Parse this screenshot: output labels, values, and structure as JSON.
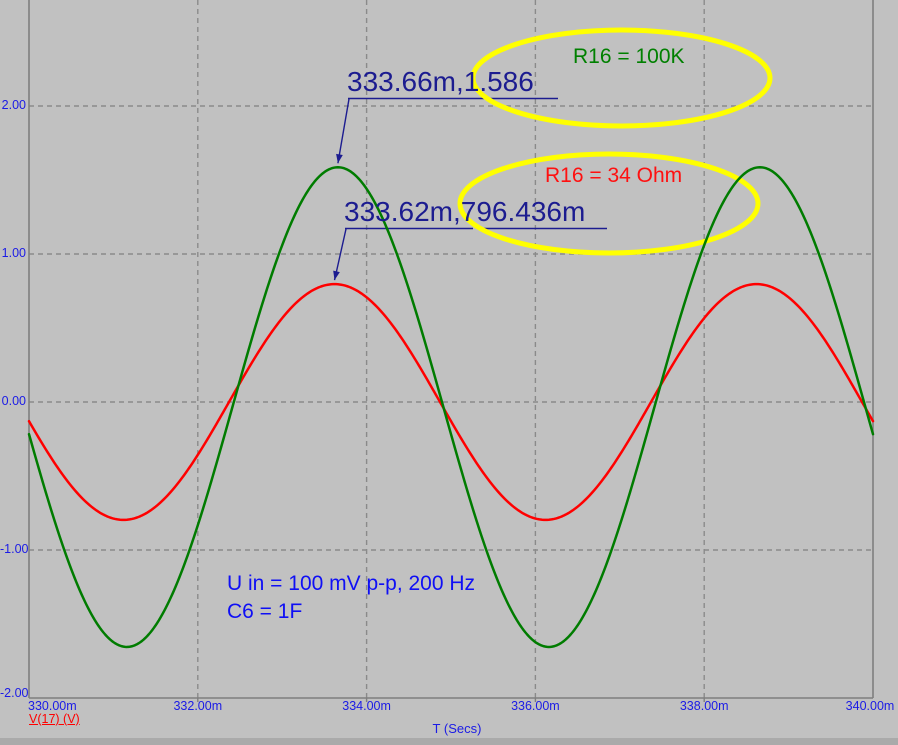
{
  "colors": {
    "background": "#c1c1c1",
    "plot_border": "#7f7f7f",
    "grid": "#8a8a8a",
    "tick_blue": "#1b1be6",
    "tag_navy": "#1c1c90",
    "green": "#007c00",
    "red": "#ff0000",
    "yellow": "#ffff00"
  },
  "axes": {
    "x_title": "T (Secs)",
    "trace_label": "V(17) (V)"
  },
  "annotations": {
    "tag1": "333.66m,1.586",
    "tag2": "333.62m,796.436m",
    "callout1": "R16 = 100K",
    "callout2": "R16 = 34 Ohm",
    "note_line1": "U in = 100 mV p-p, 200 Hz",
    "note_line2": "C6 = 1F"
  },
  "chart_data": {
    "type": "line",
    "xlabel": "T (Secs)",
    "trace_expression": "V(17) (V)",
    "x_range_ms": [
      330,
      340
    ],
    "ylim": [
      -2,
      2
    ],
    "grid": "dashed",
    "x_ticks": [
      {
        "label": "330.00m",
        "t_ms": 330
      },
      {
        "label": "332.00m",
        "t_ms": 332
      },
      {
        "label": "334.00m",
        "t_ms": 334
      },
      {
        "label": "336.00m",
        "t_ms": 336
      },
      {
        "label": "338.00m",
        "t_ms": 338
      },
      {
        "label": "340.00m",
        "t_ms": 340
      }
    ],
    "y_ticks": [
      {
        "label": "2.00",
        "v": 2
      },
      {
        "label": "1.00",
        "v": 1
      },
      {
        "label": "0.00",
        "v": 0
      },
      {
        "label": "-1.00",
        "v": -1
      },
      {
        "label": "-2.00",
        "v": -2
      }
    ],
    "series": [
      {
        "name": "V(17), R16 = 100K",
        "color_key": "green",
        "waveform": "sine",
        "frequency_hz": 200,
        "period_ms": 5,
        "peak_time_ms": 333.66,
        "peak_value": 1.586,
        "min_value": -1.655
      },
      {
        "name": "V(17), R16 = 34 Ohm",
        "color_key": "red",
        "waveform": "sine",
        "frequency_hz": 200,
        "period_ms": 5,
        "peak_time_ms": 333.62,
        "peak_value": 0.796436,
        "min_value": -0.796436
      }
    ],
    "cursor_tags": [
      {
        "text": "333.66m,1.586",
        "series": "green",
        "point_ms": 333.66,
        "point_value": 1.586
      },
      {
        "text": "333.62m,796.436m",
        "series": "red",
        "point_ms": 333.62,
        "point_value": 0.796436
      }
    ],
    "stimulus_note": [
      "U in = 100 mV p-p, 200 Hz",
      "C6 = 1F"
    ]
  }
}
